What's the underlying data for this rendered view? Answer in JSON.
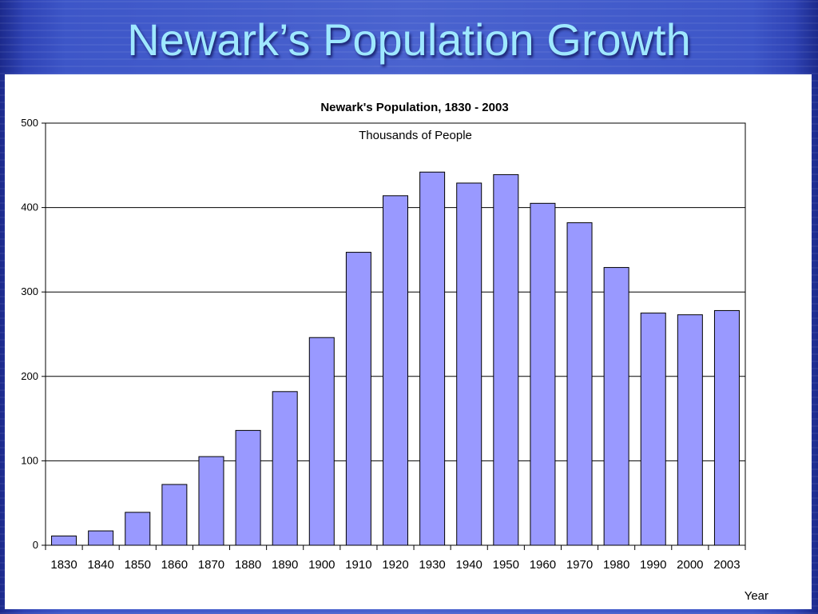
{
  "slide": {
    "title": "Newark’s Population Growth"
  },
  "colors": {
    "background": "#3d56c8",
    "title": "#9fe8ff",
    "bar_fill": "#9999ff",
    "bar_stroke": "#000000",
    "panel": "#ffffff"
  },
  "chart_data": {
    "type": "bar",
    "title": "Newark's Population, 1830 - 2003",
    "subtitle": "Thousands of People",
    "xlabel": "Year",
    "ylabel": "",
    "ylim": [
      0,
      500
    ],
    "yticks": [
      0,
      100,
      200,
      300,
      400,
      500
    ],
    "grid": true,
    "legend": "none",
    "categories": [
      "1830",
      "1840",
      "1850",
      "1860",
      "1870",
      "1880",
      "1890",
      "1900",
      "1910",
      "1920",
      "1930",
      "1940",
      "1950",
      "1960",
      "1970",
      "1980",
      "1990",
      "2000",
      "2003"
    ],
    "values": [
      11,
      17,
      39,
      72,
      105,
      136,
      182,
      246,
      347,
      414,
      442,
      429,
      439,
      405,
      382,
      329,
      275,
      273,
      278
    ]
  }
}
